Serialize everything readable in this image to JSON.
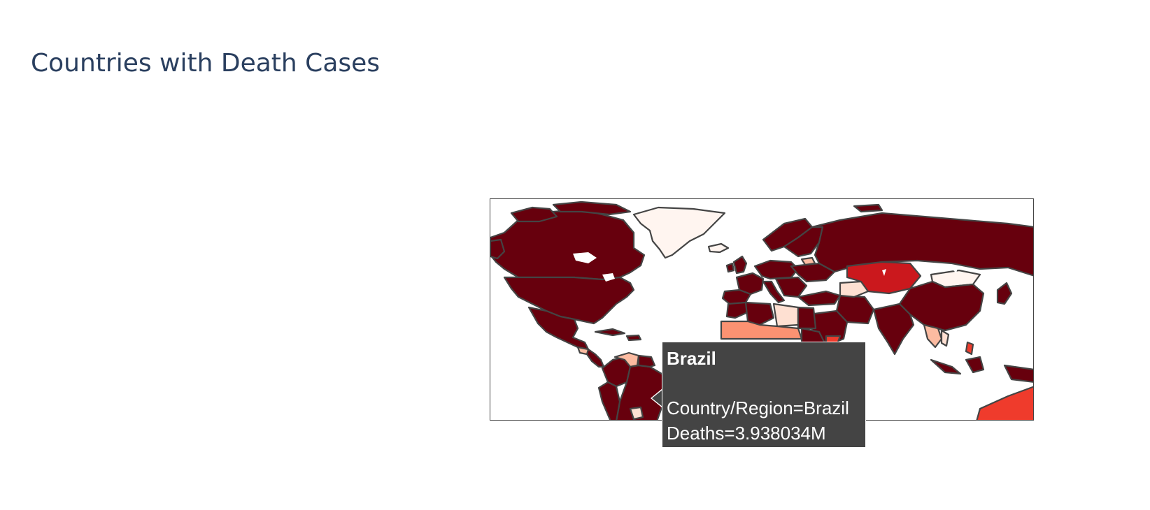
{
  "page": {
    "title": "Countries with Death Cases"
  },
  "map": {
    "type": "choropleth",
    "projection": "equirectangular",
    "colorscale": "Reds",
    "colors": {
      "very_high": "#67000d",
      "high": "#cb181d",
      "medium_high": "#ef3b2c",
      "medium": "#fc9272",
      "low": "#fcbba1",
      "very_low": "#fee0d2",
      "minimal": "#fff5f0",
      "border": "#444444"
    }
  },
  "chart_data": {
    "type": "choropleth",
    "title": "Countries with Death Cases",
    "locations_field": "Country/Region",
    "value_field": "Deaths",
    "highlighted": {
      "country": "Brazil",
      "deaths": 3938034
    }
  },
  "tooltip": {
    "heading": "Brazil",
    "line1": "Country/Region=Brazil",
    "line2": "Deaths=3.938034M"
  }
}
